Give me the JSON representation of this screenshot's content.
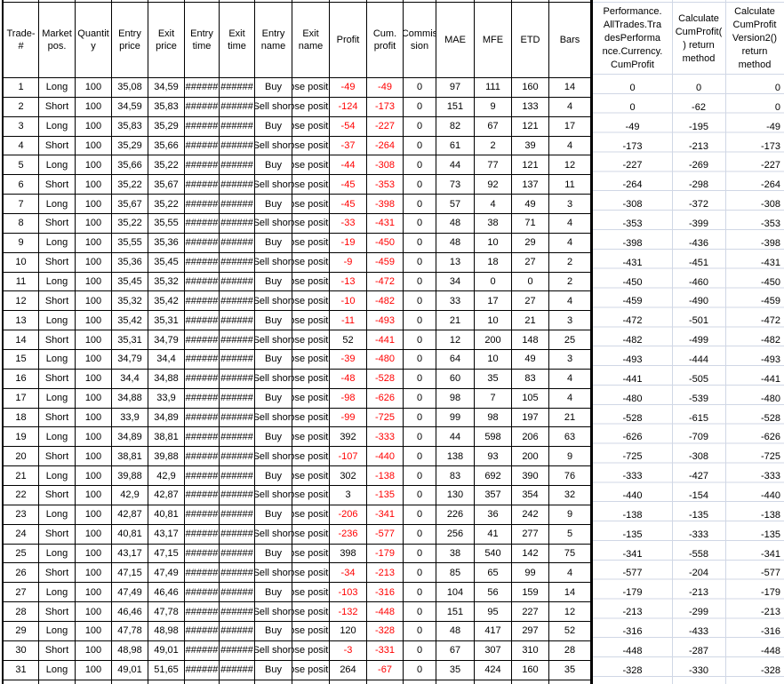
{
  "colors": {
    "negative_value": "#ff0000",
    "gridline": "#d0d7e5",
    "table_border": "#000000",
    "background": "#ffffff"
  },
  "table": {
    "headers": [
      "Trade-\n#",
      "Market\npos.",
      "Quantit\ny",
      "Entry\nprice",
      "Exit\nprice",
      "Entry\ntime",
      "Exit\ntime",
      "Entry\nname",
      "Exit\nname",
      "Profit",
      "Cum.\nprofit",
      "Commis\nsion",
      "MAE",
      "MFE",
      "ETD",
      "Bars"
    ],
    "time_overflow_marks": "######",
    "rows": [
      [
        "1",
        "Long",
        "100",
        "35,08",
        "34,59",
        "######",
        "######",
        "Buy",
        "Close position",
        "-49",
        "-49",
        "0",
        "97",
        "111",
        "160",
        "14"
      ],
      [
        "2",
        "Short",
        "100",
        "34,59",
        "35,83",
        "######",
        "######",
        "Sell short",
        "Close position",
        "-124",
        "-173",
        "0",
        "151",
        "9",
        "133",
        "4"
      ],
      [
        "3",
        "Long",
        "100",
        "35,83",
        "35,29",
        "######",
        "######",
        "Buy",
        "Close position",
        "-54",
        "-227",
        "0",
        "82",
        "67",
        "121",
        "17"
      ],
      [
        "4",
        "Short",
        "100",
        "35,29",
        "35,66",
        "######",
        "######",
        "Sell short",
        "Close position",
        "-37",
        "-264",
        "0",
        "61",
        "2",
        "39",
        "4"
      ],
      [
        "5",
        "Long",
        "100",
        "35,66",
        "35,22",
        "######",
        "######",
        "Buy",
        "Close position",
        "-44",
        "-308",
        "0",
        "44",
        "77",
        "121",
        "12"
      ],
      [
        "6",
        "Short",
        "100",
        "35,22",
        "35,67",
        "######",
        "######",
        "Sell short",
        "Close position",
        "-45",
        "-353",
        "0",
        "73",
        "92",
        "137",
        "11"
      ],
      [
        "7",
        "Long",
        "100",
        "35,67",
        "35,22",
        "######",
        "######",
        "Buy",
        "Close position",
        "-45",
        "-398",
        "0",
        "57",
        "4",
        "49",
        "3"
      ],
      [
        "8",
        "Short",
        "100",
        "35,22",
        "35,55",
        "######",
        "######",
        "Sell short",
        "Close position",
        "-33",
        "-431",
        "0",
        "48",
        "38",
        "71",
        "4"
      ],
      [
        "9",
        "Long",
        "100",
        "35,55",
        "35,36",
        "######",
        "######",
        "Buy",
        "Close position",
        "-19",
        "-450",
        "0",
        "48",
        "10",
        "29",
        "4"
      ],
      [
        "10",
        "Short",
        "100",
        "35,36",
        "35,45",
        "######",
        "######",
        "Sell short",
        "Close position",
        "-9",
        "-459",
        "0",
        "13",
        "18",
        "27",
        "2"
      ],
      [
        "11",
        "Long",
        "100",
        "35,45",
        "35,32",
        "######",
        "######",
        "Buy",
        "Close position",
        "-13",
        "-472",
        "0",
        "34",
        "0",
        "0",
        "2"
      ],
      [
        "12",
        "Short",
        "100",
        "35,32",
        "35,42",
        "######",
        "######",
        "Sell short",
        "Close position",
        "-10",
        "-482",
        "0",
        "33",
        "17",
        "27",
        "4"
      ],
      [
        "13",
        "Long",
        "100",
        "35,42",
        "35,31",
        "######",
        "######",
        "Buy",
        "Close position",
        "-11",
        "-493",
        "0",
        "21",
        "10",
        "21",
        "3"
      ],
      [
        "14",
        "Short",
        "100",
        "35,31",
        "34,79",
        "######",
        "######",
        "Sell short",
        "Close position",
        "52",
        "-441",
        "0",
        "12",
        "200",
        "148",
        "25"
      ],
      [
        "15",
        "Long",
        "100",
        "34,79",
        "34,4",
        "######",
        "######",
        "Buy",
        "Close position",
        "-39",
        "-480",
        "0",
        "64",
        "10",
        "49",
        "3"
      ],
      [
        "16",
        "Short",
        "100",
        "34,4",
        "34,88",
        "######",
        "######",
        "Sell short",
        "Close position",
        "-48",
        "-528",
        "0",
        "60",
        "35",
        "83",
        "4"
      ],
      [
        "17",
        "Long",
        "100",
        "34,88",
        "33,9",
        "######",
        "######",
        "Buy",
        "Close position",
        "-98",
        "-626",
        "0",
        "98",
        "7",
        "105",
        "4"
      ],
      [
        "18",
        "Short",
        "100",
        "33,9",
        "34,89",
        "######",
        "######",
        "Sell short",
        "Close position",
        "-99",
        "-725",
        "0",
        "99",
        "98",
        "197",
        "21"
      ],
      [
        "19",
        "Long",
        "100",
        "34,89",
        "38,81",
        "######",
        "######",
        "Buy",
        "Close position",
        "392",
        "-333",
        "0",
        "44",
        "598",
        "206",
        "63"
      ],
      [
        "20",
        "Short",
        "100",
        "38,81",
        "39,88",
        "######",
        "######",
        "Sell short",
        "Close position",
        "-107",
        "-440",
        "0",
        "138",
        "93",
        "200",
        "9"
      ],
      [
        "21",
        "Long",
        "100",
        "39,88",
        "42,9",
        "######",
        "######",
        "Buy",
        "Close position",
        "302",
        "-138",
        "0",
        "83",
        "692",
        "390",
        "76"
      ],
      [
        "22",
        "Short",
        "100",
        "42,9",
        "42,87",
        "######",
        "######",
        "Sell short",
        "Close position",
        "3",
        "-135",
        "0",
        "130",
        "357",
        "354",
        "32"
      ],
      [
        "23",
        "Long",
        "100",
        "42,87",
        "40,81",
        "######",
        "######",
        "Buy",
        "Close position",
        "-206",
        "-341",
        "0",
        "226",
        "36",
        "242",
        "9"
      ],
      [
        "24",
        "Short",
        "100",
        "40,81",
        "43,17",
        "######",
        "######",
        "Sell short",
        "Close position",
        "-236",
        "-577",
        "0",
        "256",
        "41",
        "277",
        "5"
      ],
      [
        "25",
        "Long",
        "100",
        "43,17",
        "47,15",
        "######",
        "######",
        "Buy",
        "Close position",
        "398",
        "-179",
        "0",
        "38",
        "540",
        "142",
        "75"
      ],
      [
        "26",
        "Short",
        "100",
        "47,15",
        "47,49",
        "######",
        "######",
        "Sell short",
        "Close position",
        "-34",
        "-213",
        "0",
        "85",
        "65",
        "99",
        "4"
      ],
      [
        "27",
        "Long",
        "100",
        "47,49",
        "46,46",
        "######",
        "######",
        "Buy",
        "Close position",
        "-103",
        "-316",
        "0",
        "104",
        "56",
        "159",
        "14"
      ],
      [
        "28",
        "Short",
        "100",
        "46,46",
        "47,78",
        "######",
        "######",
        "Sell short",
        "Close position",
        "-132",
        "-448",
        "0",
        "151",
        "95",
        "227",
        "12"
      ],
      [
        "29",
        "Long",
        "100",
        "47,78",
        "48,98",
        "######",
        "######",
        "Buy",
        "Close position",
        "120",
        "-328",
        "0",
        "48",
        "417",
        "297",
        "52"
      ],
      [
        "30",
        "Short",
        "100",
        "48,98",
        "49,01",
        "######",
        "######",
        "Sell short",
        "Close position",
        "-3",
        "-331",
        "0",
        "67",
        "307",
        "310",
        "28"
      ],
      [
        "31",
        "Long",
        "100",
        "49,01",
        "51,65",
        "######",
        "######",
        "Buy",
        "Close position",
        "264",
        "-67",
        "0",
        "35",
        "424",
        "160",
        "35"
      ]
    ]
  },
  "extra_columns": {
    "headers": [
      "Performance.\nAllTrades.Tra\ndesPerforma\nnce.Currency.\nCumProfit",
      "Calculate\nCumProfit(\n) return\nmethod",
      "Calculate\nCumProfit\nVersion2()\nreturn\nmethod"
    ],
    "rows": [
      [
        "0",
        "0",
        "0"
      ],
      [
        "0",
        "-62",
        "0"
      ],
      [
        "-49",
        "-195",
        "-49"
      ],
      [
        "-173",
        "-213",
        "-173"
      ],
      [
        "-227",
        "-269",
        "-227"
      ],
      [
        "-264",
        "-298",
        "-264"
      ],
      [
        "-308",
        "-372",
        "-308"
      ],
      [
        "-353",
        "-399",
        "-353"
      ],
      [
        "-398",
        "-436",
        "-398"
      ],
      [
        "-431",
        "-451",
        "-431"
      ],
      [
        "-450",
        "-460",
        "-450"
      ],
      [
        "-459",
        "-490",
        "-459"
      ],
      [
        "-472",
        "-501",
        "-472"
      ],
      [
        "-482",
        "-499",
        "-482"
      ],
      [
        "-493",
        "-444",
        "-493"
      ],
      [
        "-441",
        "-505",
        "-441"
      ],
      [
        "-480",
        "-539",
        "-480"
      ],
      [
        "-528",
        "-615",
        "-528"
      ],
      [
        "-626",
        "-709",
        "-626"
      ],
      [
        "-725",
        "-308",
        "-725"
      ],
      [
        "-333",
        "-427",
        "-333"
      ],
      [
        "-440",
        "-154",
        "-440"
      ],
      [
        "-138",
        "-135",
        "-138"
      ],
      [
        "-135",
        "-333",
        "-135"
      ],
      [
        "-341",
        "-558",
        "-341"
      ],
      [
        "-577",
        "-204",
        "-577"
      ],
      [
        "-179",
        "-213",
        "-179"
      ],
      [
        "-213",
        "-299",
        "-213"
      ],
      [
        "-316",
        "-433",
        "-316"
      ],
      [
        "-448",
        "-287",
        "-448"
      ],
      [
        "-328",
        "-330",
        "-328"
      ]
    ]
  }
}
